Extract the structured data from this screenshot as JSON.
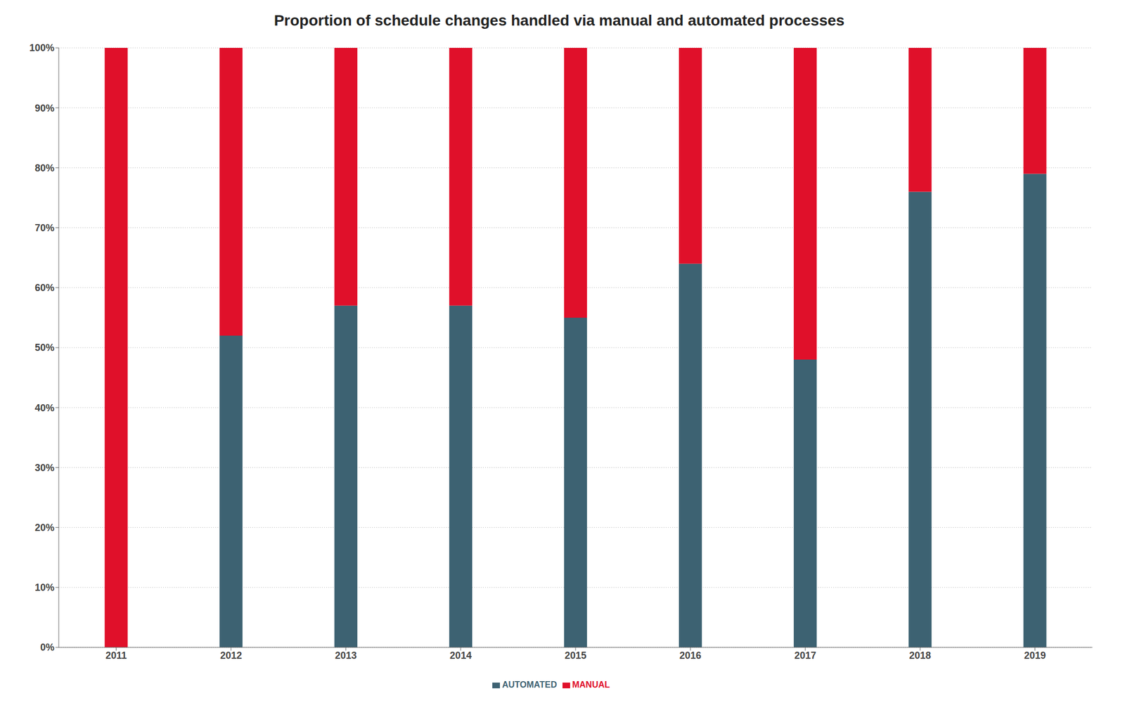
{
  "chart_data": {
    "type": "bar",
    "title": "Proportion of schedule changes handled via manual and automated processes",
    "categories": [
      "2011",
      "2012",
      "2013",
      "2014",
      "2015",
      "2016",
      "2017",
      "2018",
      "2019"
    ],
    "series": [
      {
        "name": "AUTOMATED",
        "color": "#3d6272",
        "values": [
          0,
          52,
          57,
          57,
          55,
          64,
          48,
          76,
          79
        ]
      },
      {
        "name": "MANUAL",
        "color": "#e0102a",
        "values": [
          100,
          48,
          43,
          43,
          45,
          36,
          52,
          24,
          21
        ]
      }
    ],
    "stacked": true,
    "ylim": [
      0,
      100
    ],
    "yticks": [
      {
        "value": 0,
        "label": "0%"
      },
      {
        "value": 10,
        "label": "10%"
      },
      {
        "value": 20,
        "label": "20%"
      },
      {
        "value": 30,
        "label": "30%"
      },
      {
        "value": 40,
        "label": "40%"
      },
      {
        "value": 50,
        "label": "50%"
      },
      {
        "value": 60,
        "label": "60%"
      },
      {
        "value": 70,
        "label": "70%"
      },
      {
        "value": 80,
        "label": "80%"
      },
      {
        "value": 90,
        "label": "90%"
      },
      {
        "value": 100,
        "label": "100%"
      }
    ],
    "grid": true,
    "legend": "bottom"
  }
}
